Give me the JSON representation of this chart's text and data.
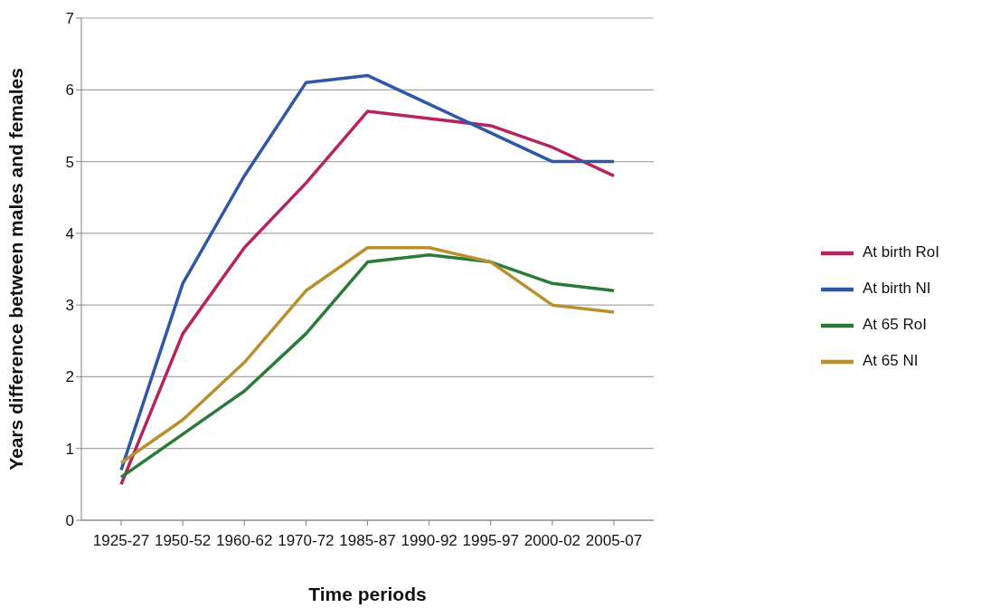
{
  "chart_data": {
    "type": "line",
    "xlabel": "Time periods",
    "ylabel": "Years difference between males and females",
    "categories": [
      "1925-27",
      "1950-52",
      "1960-62",
      "1970-72",
      "1985-87",
      "1990-92",
      "1995-97",
      "2000-02",
      "2005-07"
    ],
    "series": [
      {
        "name": "At birth RoI",
        "color": "#b5245e",
        "values": [
          0.5,
          2.6,
          3.8,
          4.7,
          5.7,
          5.6,
          5.5,
          5.2,
          4.8
        ]
      },
      {
        "name": "At birth NI",
        "color": "#2e57a6",
        "values": [
          0.7,
          3.3,
          4.8,
          6.1,
          6.2,
          5.8,
          5.4,
          5.0,
          5.0
        ]
      },
      {
        "name": "At 65 RoI",
        "color": "#2a7a3a",
        "values": [
          0.6,
          1.2,
          1.8,
          2.6,
          3.6,
          3.7,
          3.6,
          3.3,
          3.2
        ]
      },
      {
        "name": "At 65 NI",
        "color": "#b8902f",
        "values": [
          0.8,
          1.4,
          2.2,
          3.2,
          3.8,
          3.8,
          3.6,
          3.0,
          2.9
        ]
      }
    ],
    "ylim": [
      0,
      7
    ],
    "yticks": [
      0,
      1,
      2,
      3,
      4,
      5,
      6,
      7
    ],
    "grid": "y",
    "legend": "right",
    "marker": "none",
    "line_style": "solid"
  }
}
